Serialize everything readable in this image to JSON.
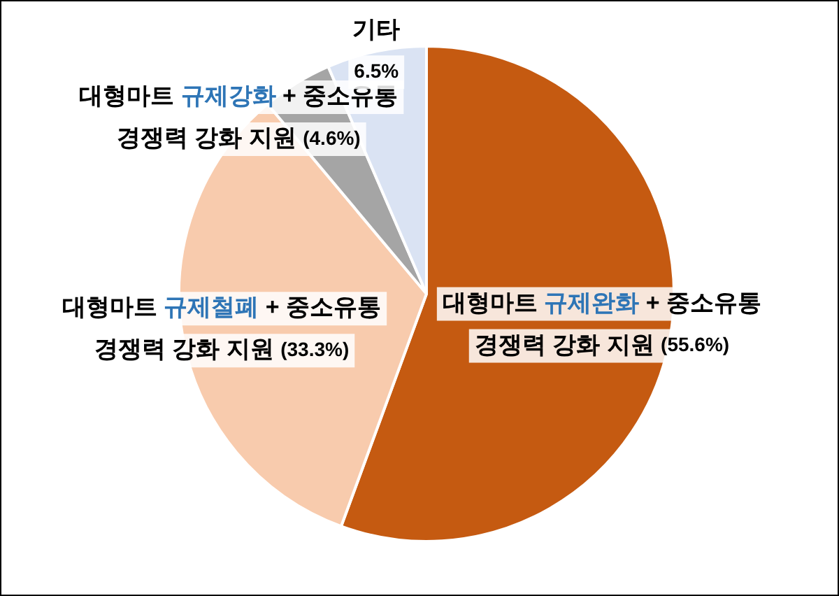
{
  "chart_data": {
    "type": "pie",
    "categories": [
      "대형마트 규제완화 + 중소유통 경쟁력 강화 지원",
      "대형마트 규제철폐 + 중소유통 경쟁력 강화 지원",
      "대형마트 규제강화 + 중소유통 경쟁력 강화 지원",
      "기타"
    ],
    "values": [
      55.6,
      33.3,
      4.6,
      6.5
    ],
    "value_labels": [
      "(55.6%)",
      "(33.3%)",
      "(4.6%)",
      "6.5%"
    ],
    "colors": [
      "#c55a11",
      "#f8cbad",
      "#a5a5a5",
      "#dae3f3"
    ],
    "legend": false
  }
}
